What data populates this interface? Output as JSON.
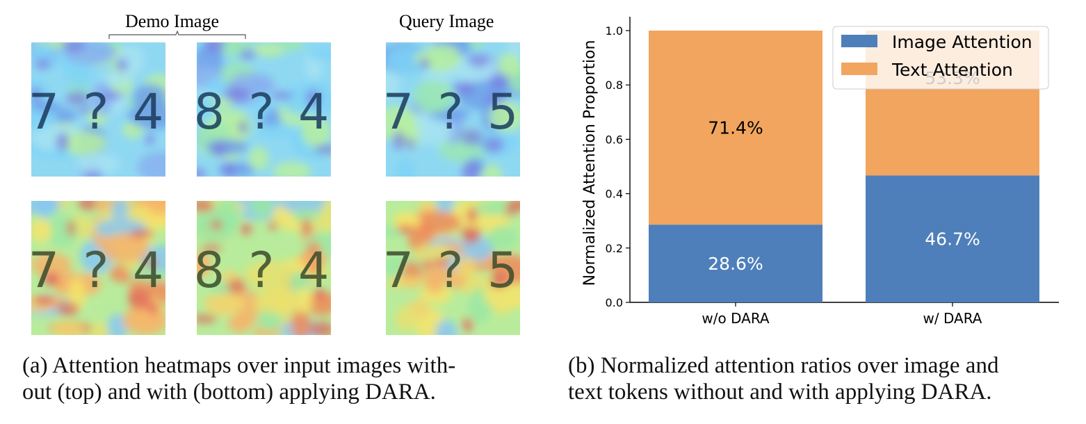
{
  "panel_a": {
    "demo_label": "Demo Image",
    "query_label": "Query Image",
    "rows": [
      {
        "name": "without-dara",
        "tiles": [
          {
            "text": "7?4",
            "role": "demo"
          },
          {
            "text": "8?4",
            "role": "demo"
          },
          {
            "text": "7?5",
            "role": "query"
          }
        ]
      },
      {
        "name": "with-dara",
        "tiles": [
          {
            "text": "7?4",
            "role": "demo"
          },
          {
            "text": "8?4",
            "role": "demo"
          },
          {
            "text": "7?5",
            "role": "query"
          }
        ]
      }
    ],
    "caption_line1": "(a) Attention heatmaps over input images with-",
    "caption_line2": "out (top) and with (bottom) applying DARA."
  },
  "panel_b": {
    "caption_line1": "(b) Normalized attention ratios over image and",
    "caption_line2": "text tokens without and with applying DARA."
  },
  "chart_data": {
    "type": "bar",
    "stacked": true,
    "categories": [
      "w/o DARA",
      "w/ DARA"
    ],
    "series": [
      {
        "name": "Image Attention",
        "values": [
          0.286,
          0.467
        ],
        "labels": [
          "28.6%",
          "46.7%"
        ],
        "color": "#4e7fba"
      },
      {
        "name": "Text Attention",
        "values": [
          0.714,
          0.533
        ],
        "labels": [
          "71.4%",
          "53.3%"
        ],
        "color": "#f2a55f"
      }
    ],
    "title": "",
    "xlabel": "",
    "ylabel": "Normalized Attention Proportion",
    "ylim": [
      0,
      1.0
    ],
    "yticks": [
      "0.0",
      "0.2",
      "0.4",
      "0.6",
      "0.8",
      "1.0"
    ],
    "grid": false,
    "legend_position": "top-right"
  }
}
